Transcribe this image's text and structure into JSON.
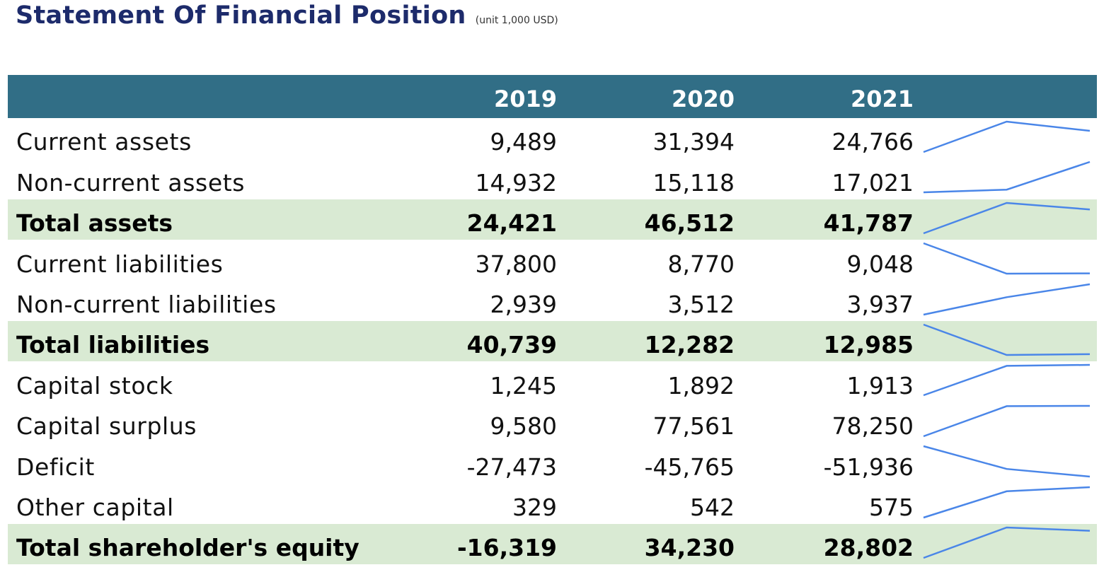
{
  "title": "Statement Of Financial Position",
  "unit": "(unit 1,000 USD)",
  "colors": {
    "header_bg": "#316e86",
    "total_bg": "#d9ead3",
    "title": "#1d2b6b",
    "sparkline": "#4a86e8"
  },
  "columns": [
    "2019",
    "2020",
    "2021"
  ],
  "rows": [
    {
      "label": "Current assets",
      "values": [
        "9,489",
        "31,394",
        "24,766"
      ],
      "numbers": [
        9489,
        31394,
        24766
      ],
      "total": false
    },
    {
      "label": "Non-current assets",
      "values": [
        "14,932",
        "15,118",
        "17,021"
      ],
      "numbers": [
        14932,
        15118,
        17021
      ],
      "total": false
    },
    {
      "label": "Total assets",
      "values": [
        "24,421",
        "46,512",
        "41,787"
      ],
      "numbers": [
        24421,
        46512,
        41787
      ],
      "total": true
    },
    {
      "label": "Current liabilities",
      "values": [
        "37,800",
        "8,770",
        "9,048"
      ],
      "numbers": [
        37800,
        8770,
        9048
      ],
      "total": false
    },
    {
      "label": "Non-current liabilities",
      "values": [
        "2,939",
        "3,512",
        "3,937"
      ],
      "numbers": [
        2939,
        3512,
        3937
      ],
      "total": false
    },
    {
      "label": "Total liabilities",
      "values": [
        "40,739",
        "12,282",
        "12,985"
      ],
      "numbers": [
        40739,
        12282,
        12985
      ],
      "total": true
    },
    {
      "label": "Capital stock",
      "values": [
        "1,245",
        "1,892",
        "1,913"
      ],
      "numbers": [
        1245,
        1892,
        1913
      ],
      "total": false
    },
    {
      "label": "Capital surplus",
      "values": [
        "9,580",
        "77,561",
        "78,250"
      ],
      "numbers": [
        9580,
        77561,
        78250
      ],
      "total": false
    },
    {
      "label": "Deficit",
      "values": [
        "-27,473",
        "-45,765",
        "-51,936"
      ],
      "numbers": [
        -27473,
        -45765,
        -51936
      ],
      "total": false
    },
    {
      "label": "Other capital",
      "values": [
        "329",
        "542",
        "575"
      ],
      "numbers": [
        329,
        542,
        575
      ],
      "total": false
    },
    {
      "label": "Total shareholder's equity",
      "values": [
        "-16,319",
        "34,230",
        "28,802"
      ],
      "numbers": [
        -16319,
        34230,
        28802
      ],
      "total": true
    }
  ]
}
